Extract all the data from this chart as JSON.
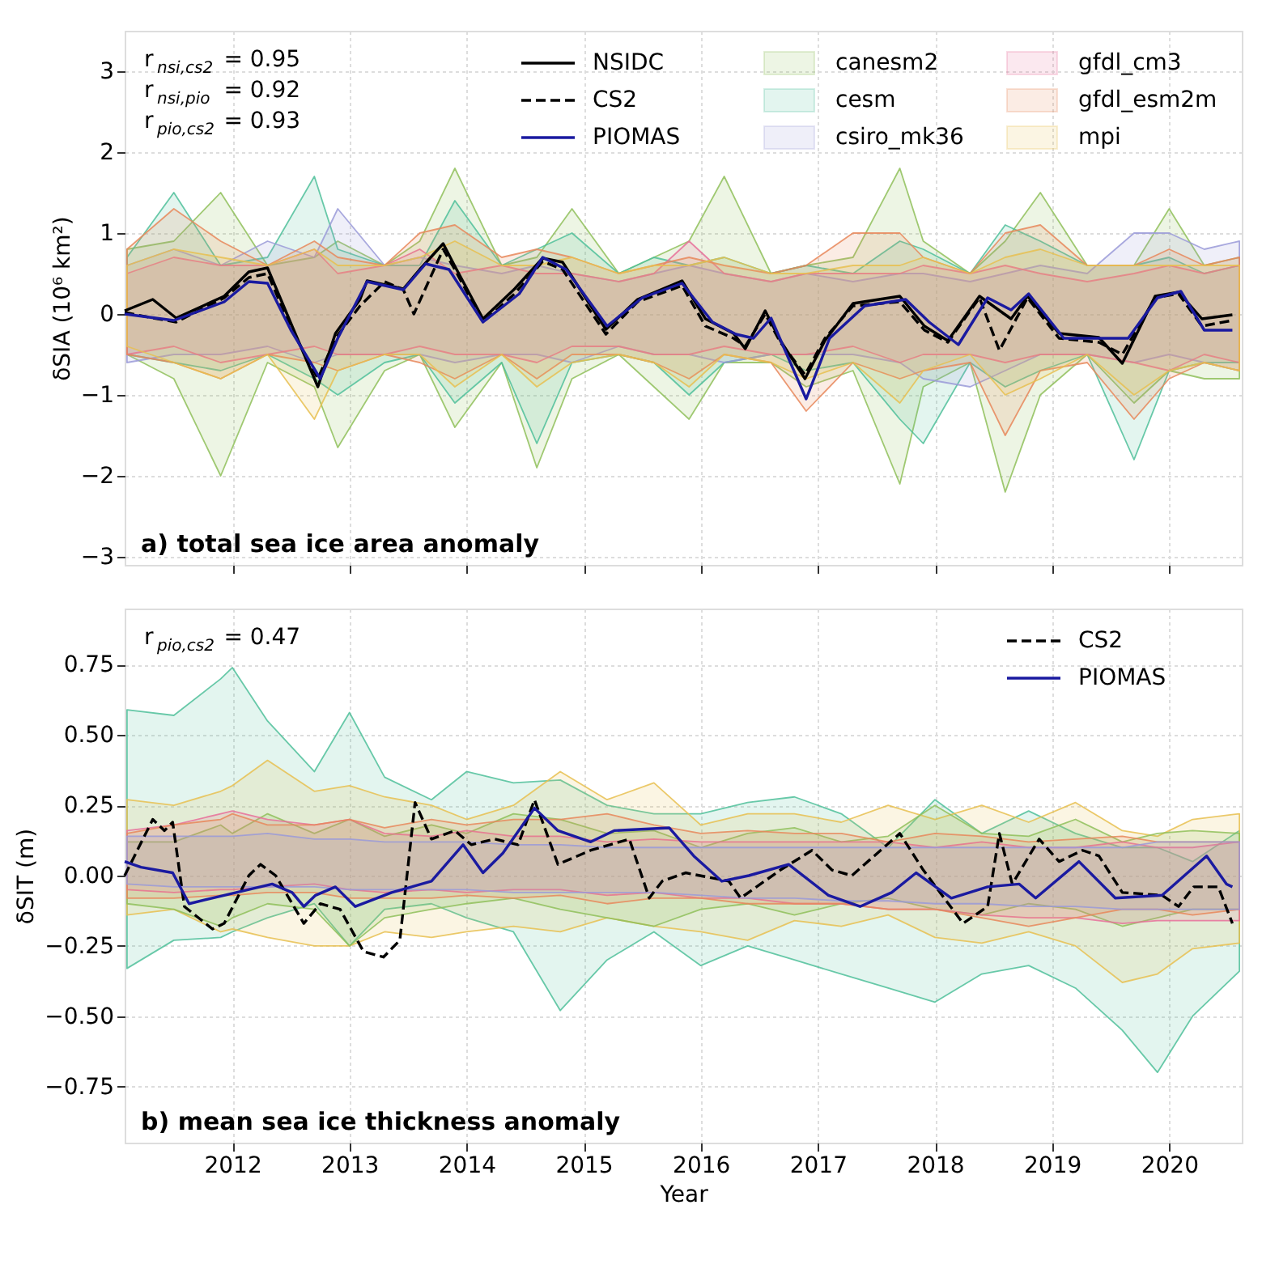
{
  "chart_data": [
    {
      "type": "line",
      "title": "a) total sea ice area anomaly",
      "ylabel": "δSIA (10⁶ km²)",
      "annotations": [
        "r$_{nsi,cs2}$ = 0.95",
        "r$_{nsi,pio}$ = 0.92",
        "r$_{pio,cs2}$ = 0.93"
      ],
      "xlim": [
        2011.08,
        2020.62
      ],
      "xticks": [
        2012,
        2013,
        2014,
        2015,
        2016,
        2017,
        2018,
        2019,
        2020
      ],
      "ylim": [
        -3.1,
        3.5
      ],
      "yticks": [
        -3,
        -2,
        -1,
        0,
        1,
        2,
        3
      ],
      "grid": true,
      "legend": "top right",
      "tick_labels": "y",
      "x": [
        2011.1,
        2011.5,
        2011.9,
        2012.3,
        2012.7,
        2012.9,
        2013.3,
        2013.6,
        2013.9,
        2014.3,
        2014.6,
        2014.9,
        2015.3,
        2015.6,
        2015.9,
        2016.2,
        2016.6,
        2016.9,
        2017.3,
        2017.7,
        2017.9,
        2018.3,
        2018.6,
        2018.9,
        2019.3,
        2019.7,
        2020.0,
        2020.3,
        2020.6
      ],
      "series": [
        {
          "name": "NSIDC",
          "color": "#000000",
          "line_style": "solid",
          "x": [
            2011.08,
            2011.32,
            2011.52,
            2011.93,
            2012.14,
            2012.3,
            2012.51,
            2012.73,
            2012.88,
            2013.09,
            2013.15,
            2013.46,
            2013.6,
            2013.8,
            2013.9,
            2014.14,
            2014.41,
            2014.65,
            2014.82,
            2015.19,
            2015.46,
            2015.84,
            2016.04,
            2016.28,
            2016.38,
            2016.55,
            2016.68,
            2016.89,
            2017.06,
            2017.3,
            2017.7,
            2017.91,
            2018.11,
            2018.38,
            2018.65,
            2018.79,
            2019.06,
            2019.4,
            2019.6,
            2019.88,
            2020.08,
            2020.28,
            2020.54
          ],
          "values": [
            0.04,
            0.18,
            -0.05,
            0.22,
            0.52,
            0.57,
            -0.15,
            -0.9,
            -0.24,
            0.18,
            0.41,
            0.31,
            0.55,
            0.87,
            0.59,
            -0.06,
            0.31,
            0.69,
            0.64,
            -0.19,
            0.18,
            0.41,
            -0.06,
            -0.24,
            -0.43,
            0.04,
            -0.33,
            -0.8,
            -0.33,
            0.13,
            0.22,
            -0.15,
            -0.33,
            0.22,
            -0.06,
            0.22,
            -0.24,
            -0.29,
            -0.61,
            0.22,
            0.27,
            -0.06,
            -0.01
          ]
        },
        {
          "name": "CS2",
          "color": "#000000",
          "line_style": "dashed",
          "x": [
            2011.08,
            2011.32,
            2011.52,
            2011.93,
            2012.14,
            2012.3,
            2012.51,
            2012.73,
            2012.88,
            2013.09,
            2013.3,
            2013.46,
            2013.55,
            2013.8,
            2013.9,
            2014.14,
            2014.41,
            2014.65,
            2014.82,
            2015.19,
            2015.46,
            2015.84,
            2016.04,
            2016.28,
            2016.38,
            2016.55,
            2016.68,
            2016.89,
            2017.06,
            2017.3,
            2017.7,
            2017.91,
            2018.11,
            2018.38,
            2018.55,
            2018.79,
            2019.06,
            2019.4,
            2019.6,
            2019.88,
            2020.08,
            2020.28,
            2020.54
          ],
          "values": [
            0.02,
            -0.05,
            -0.1,
            0.2,
            0.45,
            0.5,
            -0.2,
            -0.8,
            -0.3,
            0.1,
            0.4,
            0.3,
            0.0,
            0.8,
            0.55,
            -0.1,
            0.25,
            0.65,
            0.55,
            -0.25,
            0.15,
            0.35,
            -0.15,
            -0.3,
            -0.4,
            0.0,
            -0.35,
            -0.75,
            -0.3,
            0.1,
            0.15,
            -0.2,
            -0.35,
            0.2,
            -0.45,
            0.2,
            -0.3,
            -0.35,
            -0.5,
            0.2,
            0.25,
            -0.15,
            -0.08
          ]
        },
        {
          "name": "PIOMAS",
          "color": "#1a1aa0",
          "line_style": "solid",
          "x": [
            2011.08,
            2011.5,
            2011.93,
            2012.14,
            2012.3,
            2012.5,
            2012.75,
            2012.9,
            2013.15,
            2013.46,
            2013.65,
            2013.85,
            2014.14,
            2014.45,
            2014.65,
            2014.85,
            2015.2,
            2015.5,
            2015.84,
            2016.1,
            2016.3,
            2016.45,
            2016.6,
            2016.9,
            2017.1,
            2017.4,
            2017.75,
            2017.95,
            2018.2,
            2018.45,
            2018.65,
            2018.8,
            2019.1,
            2019.4,
            2019.65,
            2019.9,
            2020.1,
            2020.3,
            2020.54
          ],
          "values": [
            0.0,
            -0.08,
            0.15,
            0.4,
            0.38,
            -0.2,
            -0.8,
            -0.3,
            0.4,
            0.3,
            0.62,
            0.55,
            -0.1,
            0.25,
            0.7,
            0.55,
            -0.15,
            0.2,
            0.38,
            -0.1,
            -0.25,
            -0.3,
            -0.05,
            -1.05,
            -0.3,
            0.1,
            0.18,
            -0.1,
            -0.38,
            0.2,
            0.05,
            0.25,
            -0.3,
            -0.3,
            -0.3,
            0.2,
            0.28,
            -0.2,
            -0.2
          ]
        },
        {
          "name": "canesm2",
          "type": "area",
          "color": "#8fc05a",
          "values": [
            null,
            null,
            null,
            null,
            null,
            null,
            null,
            null,
            null,
            null,
            null,
            null,
            null,
            null,
            null,
            null,
            null,
            null,
            null,
            null,
            null,
            null,
            null,
            null,
            null,
            null,
            null,
            null,
            null
          ],
          "upper": [
            0.8,
            0.9,
            1.5,
            0.6,
            0.7,
            0.9,
            0.6,
            0.9,
            1.8,
            0.6,
            0.7,
            1.3,
            0.5,
            0.7,
            0.9,
            1.7,
            0.5,
            0.6,
            0.7,
            1.8,
            0.9,
            0.5,
            0.9,
            1.5,
            0.6,
            0.6,
            1.3,
            0.6,
            0.7
          ],
          "lower": [
            -0.5,
            -0.8,
            -2.0,
            -0.6,
            -0.9,
            -1.65,
            -0.7,
            -0.5,
            -1.4,
            -0.6,
            -1.9,
            -0.8,
            -0.5,
            -0.9,
            -1.3,
            -0.6,
            -0.6,
            -0.9,
            -0.7,
            -2.1,
            -0.9,
            -0.6,
            -2.2,
            -1.0,
            -0.5,
            -1.1,
            -0.7,
            -0.8,
            -0.8
          ]
        },
        {
          "name": "cesm",
          "type": "area",
          "color": "#4fbf9a",
          "values": [
            null,
            null,
            null,
            null,
            null,
            null,
            null,
            null,
            null,
            null,
            null,
            null,
            null,
            null,
            null,
            null,
            null,
            null,
            null,
            null,
            null,
            null,
            null,
            null,
            null,
            null,
            null,
            null,
            null
          ],
          "upper": [
            0.7,
            1.5,
            0.6,
            0.7,
            1.7,
            0.8,
            0.6,
            0.6,
            1.4,
            0.6,
            0.8,
            1.0,
            0.5,
            0.7,
            0.6,
            0.7,
            0.5,
            0.6,
            0.5,
            0.9,
            0.8,
            0.5,
            1.1,
            0.9,
            0.6,
            0.6,
            0.7,
            0.5,
            0.6
          ],
          "lower": [
            -0.5,
            -0.6,
            -0.7,
            -0.5,
            -0.8,
            -1.0,
            -0.6,
            -0.5,
            -1.1,
            -0.6,
            -1.6,
            -0.6,
            -0.5,
            -0.6,
            -1.0,
            -0.6,
            -0.5,
            -0.7,
            -0.6,
            -1.3,
            -1.6,
            -0.6,
            -0.9,
            -0.7,
            -0.5,
            -1.8,
            -0.7,
            -0.6,
            -0.6
          ]
        },
        {
          "name": "csiro_mk36",
          "type": "area",
          "color": "#9a9ad8",
          "values": [
            null,
            null,
            null,
            null,
            null,
            null,
            null,
            null,
            null,
            null,
            null,
            null,
            null,
            null,
            null,
            null,
            null,
            null,
            null,
            null,
            null,
            null,
            null,
            null,
            null,
            null,
            null,
            null,
            null
          ],
          "upper": [
            0.6,
            0.8,
            0.6,
            0.9,
            0.7,
            1.3,
            0.6,
            0.7,
            0.6,
            0.5,
            0.6,
            0.5,
            0.4,
            0.5,
            0.6,
            0.5,
            0.4,
            0.5,
            0.4,
            0.5,
            0.5,
            0.4,
            0.5,
            0.6,
            0.5,
            1.0,
            1.0,
            0.8,
            0.9
          ],
          "lower": [
            -0.6,
            -0.5,
            -0.5,
            -0.4,
            -0.6,
            -0.5,
            -0.5,
            -0.5,
            -0.6,
            -0.5,
            -0.5,
            -0.6,
            -0.4,
            -0.5,
            -0.5,
            -0.6,
            -0.5,
            -0.5,
            -0.5,
            -0.6,
            -0.8,
            -0.9,
            -0.7,
            -0.5,
            -0.5,
            -0.6,
            -0.5,
            -0.6,
            -0.7
          ]
        },
        {
          "name": "gfdl_cm3",
          "type": "area",
          "color": "#e8709a",
          "values": [
            null,
            null,
            null,
            null,
            null,
            null,
            null,
            null,
            null,
            null,
            null,
            null,
            null,
            null,
            null,
            null,
            null,
            null,
            null,
            null,
            null,
            null,
            null,
            null,
            null,
            null,
            null,
            null,
            null
          ],
          "upper": [
            0.5,
            0.7,
            0.6,
            0.6,
            0.8,
            0.5,
            0.6,
            0.8,
            0.5,
            0.6,
            0.5,
            0.5,
            0.4,
            0.5,
            0.9,
            0.5,
            0.4,
            0.5,
            0.5,
            0.5,
            0.6,
            0.5,
            0.6,
            0.5,
            0.4,
            0.5,
            0.6,
            0.5,
            0.6
          ],
          "lower": [
            -0.5,
            -0.4,
            -0.6,
            -0.5,
            -0.4,
            -0.5,
            -0.5,
            -0.4,
            -0.5,
            -0.5,
            -0.6,
            -0.4,
            -0.4,
            -0.5,
            -0.5,
            -0.4,
            -0.5,
            -0.5,
            -0.4,
            -0.6,
            -0.5,
            -0.5,
            -0.6,
            -0.5,
            -0.5,
            -0.6,
            -0.7,
            -0.5,
            -0.6
          ]
        },
        {
          "name": "gfdl_esm2m",
          "type": "area",
          "color": "#e8875a",
          "values": [
            null,
            null,
            null,
            null,
            null,
            null,
            null,
            null,
            null,
            null,
            null,
            null,
            null,
            null,
            null,
            null,
            null,
            null,
            null,
            null,
            null,
            null,
            null,
            null,
            null,
            null,
            null,
            null,
            null
          ],
          "upper": [
            0.8,
            1.3,
            0.9,
            0.6,
            0.9,
            0.7,
            0.6,
            1.0,
            1.1,
            0.7,
            0.8,
            0.7,
            0.5,
            0.6,
            0.7,
            0.6,
            0.5,
            0.6,
            1.0,
            1.0,
            0.7,
            0.5,
            1.0,
            1.1,
            0.6,
            0.6,
            0.8,
            0.6,
            0.7
          ],
          "lower": [
            -0.5,
            -0.6,
            -0.8,
            -0.5,
            -0.6,
            -0.7,
            -0.5,
            -0.6,
            -0.8,
            -0.5,
            -0.8,
            -0.5,
            -0.5,
            -0.6,
            -0.8,
            -0.5,
            -0.6,
            -1.2,
            -0.6,
            -0.8,
            -0.7,
            -0.6,
            -1.5,
            -0.7,
            -0.6,
            -1.3,
            -0.8,
            -0.6,
            -0.7
          ]
        },
        {
          "name": "mpi",
          "type": "area",
          "color": "#e8c050",
          "values": [
            null,
            null,
            null,
            null,
            null,
            null,
            null,
            null,
            null,
            null,
            null,
            null,
            null,
            null,
            null,
            null,
            null,
            null,
            null,
            null,
            null,
            null,
            null,
            null,
            null,
            null,
            null,
            null,
            null
          ],
          "upper": [
            0.6,
            0.8,
            0.7,
            0.6,
            0.8,
            0.6,
            0.6,
            0.7,
            0.9,
            0.6,
            0.6,
            0.7,
            0.5,
            0.6,
            0.6,
            0.7,
            0.5,
            0.5,
            0.6,
            0.6,
            0.7,
            0.5,
            0.7,
            0.8,
            0.6,
            0.6,
            0.6,
            0.6,
            0.6
          ],
          "lower": [
            -0.4,
            -0.6,
            -0.8,
            -0.5,
            -1.3,
            -0.7,
            -0.5,
            -0.5,
            -0.9,
            -0.5,
            -0.9,
            -0.6,
            -0.5,
            -0.6,
            -0.9,
            -0.5,
            -0.6,
            -0.8,
            -0.6,
            -1.1,
            -0.7,
            -0.5,
            -1.0,
            -0.8,
            -0.5,
            -1.0,
            -0.7,
            -0.6,
            -0.7
          ]
        }
      ]
    },
    {
      "type": "line",
      "title": "b) mean sea ice thickness anomaly",
      "xlabel": "Year",
      "ylabel": "δSIT (m)",
      "annotations": [
        "r$_{pio,cs2}$ = 0.47"
      ],
      "xlim": [
        2011.08,
        2020.62
      ],
      "xticks": [
        2012,
        2013,
        2014,
        2015,
        2016,
        2017,
        2018,
        2019,
        2020
      ],
      "ylim": [
        -0.95,
        0.95
      ],
      "yticks": [
        {
          "value": -0.75,
          "label": "−0.75"
        },
        {
          "value": -0.5,
          "label": "−0.50"
        },
        {
          "value": -0.25,
          "label": "−0.25"
        },
        {
          "value": 0,
          "label": "0.00"
        },
        0.25,
        {
          "value": 0.5,
          "label": "0.50"
        },
        0.75
      ],
      "grid": true,
      "legend": "top right",
      "x": [
        2011.1,
        2011.5,
        2011.9,
        2012.0,
        2012.3,
        2012.7,
        2013.0,
        2013.3,
        2013.7,
        2014.0,
        2014.4,
        2014.8,
        2015.2,
        2015.6,
        2016.0,
        2016.4,
        2016.8,
        2017.2,
        2017.6,
        2018.0,
        2018.4,
        2018.8,
        2019.2,
        2019.6,
        2019.9,
        2020.2,
        2020.6
      ],
      "series": [
        {
          "type": "area",
          "color": "#4fbf9a",
          "values": [
            null,
            null,
            null,
            null,
            null,
            null,
            null,
            null,
            null,
            null,
            null,
            null,
            null,
            null,
            null,
            null,
            null,
            null,
            null,
            null,
            null,
            null,
            null,
            null,
            null,
            null,
            null
          ],
          "upper": [
            0.59,
            0.57,
            0.7,
            0.74,
            0.55,
            0.37,
            0.58,
            0.35,
            0.27,
            0.37,
            0.33,
            0.34,
            0.25,
            0.22,
            0.22,
            0.26,
            0.28,
            0.22,
            0.1,
            0.27,
            0.15,
            0.23,
            0.15,
            0.1,
            0.1,
            0.05,
            0.16
          ],
          "lower": [
            -0.33,
            -0.23,
            -0.22,
            -0.2,
            -0.15,
            -0.1,
            -0.25,
            -0.12,
            -0.1,
            -0.15,
            -0.2,
            -0.48,
            -0.3,
            -0.2,
            -0.32,
            -0.25,
            -0.3,
            -0.35,
            -0.4,
            -0.45,
            -0.35,
            -0.32,
            -0.4,
            -0.55,
            -0.7,
            -0.5,
            -0.34
          ]
        },
        {
          "type": "area",
          "color": "#e8c050",
          "values": [
            null,
            null,
            null,
            null,
            null,
            null,
            null,
            null,
            null,
            null,
            null,
            null,
            null,
            null,
            null,
            null,
            null,
            null,
            null,
            null,
            null,
            null,
            null,
            null,
            null,
            null,
            null
          ],
          "upper": [
            0.27,
            0.25,
            0.3,
            0.32,
            0.41,
            0.3,
            0.32,
            0.28,
            0.25,
            0.2,
            0.25,
            0.37,
            0.27,
            0.33,
            0.18,
            0.22,
            0.22,
            0.19,
            0.25,
            0.2,
            0.25,
            0.19,
            0.26,
            0.16,
            0.14,
            0.2,
            0.22
          ],
          "lower": [
            -0.14,
            -0.12,
            -0.2,
            -0.19,
            -0.22,
            -0.25,
            -0.25,
            -0.2,
            -0.22,
            -0.2,
            -0.18,
            -0.2,
            -0.15,
            -0.18,
            -0.2,
            -0.23,
            -0.16,
            -0.18,
            -0.14,
            -0.22,
            -0.24,
            -0.2,
            -0.25,
            -0.38,
            -0.35,
            -0.26,
            -0.24
          ]
        },
        {
          "type": "area",
          "color": "#8fc05a",
          "values": [
            null,
            null,
            null,
            null,
            null,
            null,
            null,
            null,
            null,
            null,
            null,
            null,
            null,
            null,
            null,
            null,
            null,
            null,
            null,
            null,
            null,
            null,
            null,
            null,
            null,
            null,
            null
          ],
          "upper": [
            0.12,
            0.12,
            0.18,
            0.15,
            0.22,
            0.15,
            0.2,
            0.14,
            0.18,
            0.15,
            0.22,
            0.2,
            0.15,
            0.16,
            0.1,
            0.15,
            0.17,
            0.12,
            0.14,
            0.25,
            0.15,
            0.14,
            0.2,
            0.12,
            0.15,
            0.16,
            0.15
          ],
          "lower": [
            -0.1,
            -0.12,
            -0.18,
            -0.15,
            -0.1,
            -0.12,
            -0.25,
            -0.15,
            -0.12,
            -0.1,
            -0.08,
            -0.12,
            -0.15,
            -0.18,
            -0.12,
            -0.1,
            -0.14,
            -0.1,
            -0.08,
            -0.12,
            -0.14,
            -0.1,
            -0.12,
            -0.18,
            -0.15,
            -0.12,
            -0.12
          ]
        },
        {
          "type": "area",
          "color": "#e8709a",
          "values": [
            null,
            null,
            null,
            null,
            null,
            null,
            null,
            null,
            null,
            null,
            null,
            null,
            null,
            null,
            null,
            null,
            null,
            null,
            null,
            null,
            null,
            null,
            null,
            null,
            null,
            null,
            null
          ],
          "upper": [
            0.16,
            0.18,
            0.22,
            0.23,
            0.2,
            0.18,
            0.2,
            0.15,
            0.14,
            0.16,
            0.14,
            0.14,
            0.12,
            0.13,
            0.12,
            0.12,
            0.12,
            0.12,
            0.12,
            0.1,
            0.12,
            0.1,
            0.1,
            0.12,
            0.1,
            0.1,
            0.12
          ],
          "lower": [
            -0.05,
            -0.06,
            -0.05,
            -0.05,
            -0.04,
            -0.03,
            -0.05,
            -0.06,
            -0.05,
            -0.06,
            -0.05,
            -0.05,
            -0.07,
            -0.06,
            -0.08,
            -0.08,
            -0.1,
            -0.1,
            -0.12,
            -0.12,
            -0.14,
            -0.15,
            -0.15,
            -0.17,
            -0.16,
            -0.16,
            -0.16
          ]
        },
        {
          "type": "area",
          "color": "#e8875a",
          "values": [
            null,
            null,
            null,
            null,
            null,
            null,
            null,
            null,
            null,
            null,
            null,
            null,
            null,
            null,
            null,
            null,
            null,
            null,
            null,
            null,
            null,
            null,
            null,
            null,
            null,
            null,
            null
          ],
          "upper": [
            0.15,
            0.18,
            0.2,
            0.22,
            0.18,
            0.18,
            0.2,
            0.17,
            0.2,
            0.18,
            0.2,
            0.2,
            0.22,
            0.18,
            0.15,
            0.16,
            0.15,
            0.15,
            0.12,
            0.15,
            0.14,
            0.12,
            0.13,
            0.14,
            0.12,
            0.12,
            0.12
          ],
          "lower": [
            -0.08,
            -0.08,
            -0.07,
            -0.07,
            -0.06,
            -0.06,
            -0.08,
            -0.08,
            -0.08,
            -0.07,
            -0.08,
            -0.07,
            -0.1,
            -0.08,
            -0.08,
            -0.1,
            -0.1,
            -0.1,
            -0.12,
            -0.12,
            -0.15,
            -0.18,
            -0.15,
            -0.12,
            -0.12,
            -0.14,
            -0.12
          ]
        },
        {
          "type": "area",
          "color": "#9a9ad8",
          "values": [
            null,
            null,
            null,
            null,
            null,
            null,
            null,
            null,
            null,
            null,
            null,
            null,
            null,
            null,
            null,
            null,
            null,
            null,
            null,
            null,
            null,
            null,
            null,
            null,
            null,
            null,
            null
          ],
          "upper": [
            0.14,
            0.14,
            0.14,
            0.14,
            0.15,
            0.13,
            0.13,
            0.12,
            0.12,
            0.12,
            0.11,
            0.11,
            0.1,
            0.1,
            0.1,
            0.1,
            0.1,
            0.1,
            0.1,
            0.1,
            0.1,
            0.1,
            0.1,
            0.1,
            0.12,
            0.12,
            0.12
          ],
          "lower": [
            -0.03,
            -0.04,
            -0.04,
            -0.04,
            -0.04,
            -0.04,
            -0.05,
            -0.05,
            -0.05,
            -0.05,
            -0.06,
            -0.06,
            -0.06,
            -0.06,
            -0.07,
            -0.08,
            -0.08,
            -0.09,
            -0.09,
            -0.1,
            -0.1,
            -0.11,
            -0.11,
            -0.12,
            -0.12,
            -0.12,
            -0.12
          ]
        },
        {
          "name": "CS2",
          "color": "#000000",
          "line_style": "dashed",
          "x": [
            2011.08,
            2011.32,
            2011.42,
            2011.49,
            2011.59,
            2011.83,
            2011.93,
            2012.14,
            2012.24,
            2012.37,
            2012.61,
            2012.75,
            2012.92,
            2013.12,
            2013.29,
            2013.43,
            2013.56,
            2013.7,
            2013.9,
            2014.04,
            2014.24,
            2014.44,
            2014.58,
            2014.78,
            2015.06,
            2015.39,
            2015.56,
            2015.67,
            2015.87,
            2016.24,
            2016.34,
            2016.68,
            2016.95,
            2017.12,
            2017.29,
            2017.7,
            2017.9,
            2018.24,
            2018.45,
            2018.55,
            2018.66,
            2018.89,
            2019.06,
            2019.26,
            2019.4,
            2019.6,
            2019.94,
            2020.08,
            2020.21,
            2020.42,
            2020.54
          ],
          "values": [
            0.0,
            0.2,
            0.16,
            0.19,
            -0.11,
            -0.19,
            -0.17,
            0.0,
            0.04,
            0.0,
            -0.17,
            -0.1,
            -0.12,
            -0.27,
            -0.29,
            -0.23,
            0.26,
            0.13,
            0.16,
            0.11,
            0.13,
            0.11,
            0.27,
            0.04,
            0.09,
            0.13,
            -0.08,
            -0.02,
            0.01,
            -0.02,
            -0.08,
            0.02,
            0.09,
            0.02,
            0.0,
            0.15,
            0.02,
            -0.17,
            -0.11,
            0.15,
            -0.03,
            0.13,
            0.05,
            0.09,
            0.07,
            -0.06,
            -0.07,
            -0.11,
            -0.04,
            -0.04,
            -0.17
          ]
        },
        {
          "name": "PIOMAS",
          "color": "#1a1aa0",
          "line_style": "solid",
          "x": [
            2011.08,
            2011.22,
            2011.49,
            2011.63,
            2011.93,
            2012.34,
            2012.51,
            2012.61,
            2012.71,
            2012.88,
            2013.05,
            2013.36,
            2013.7,
            2013.97,
            2014.14,
            2014.31,
            2014.58,
            2014.78,
            2015.06,
            2015.26,
            2015.73,
            2015.94,
            2016.18,
            2016.41,
            2016.75,
            2017.09,
            2017.36,
            2017.63,
            2017.84,
            2018.14,
            2018.45,
            2018.72,
            2018.86,
            2019.23,
            2019.54,
            2019.94,
            2020.32,
            2020.49,
            2020.54
          ],
          "values": [
            0.05,
            0.03,
            0.01,
            -0.1,
            -0.07,
            -0.03,
            -0.06,
            -0.11,
            -0.07,
            -0.04,
            -0.11,
            -0.06,
            -0.02,
            0.11,
            0.01,
            0.08,
            0.24,
            0.16,
            0.12,
            0.16,
            0.17,
            0.07,
            -0.02,
            0.0,
            0.04,
            -0.07,
            -0.11,
            -0.06,
            0.01,
            -0.08,
            -0.04,
            -0.03,
            -0.08,
            0.05,
            -0.08,
            -0.07,
            0.07,
            -0.03,
            -0.04
          ]
        }
      ]
    }
  ]
}
